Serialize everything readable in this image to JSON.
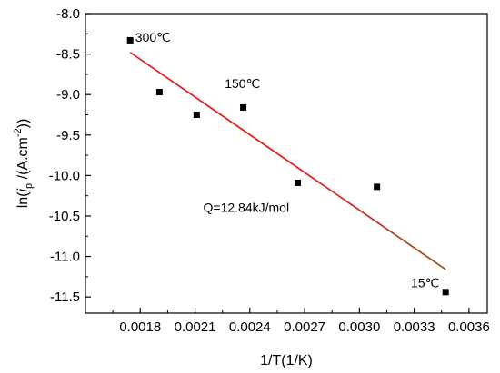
{
  "chart_data": {
    "type": "scatter",
    "title": "",
    "xlabel": "1/T(1/K)",
    "ylabel": {
      "prefix": "ln(",
      "italic": "i",
      "sub": "p",
      "unit_open": "  /(A.cm",
      "sup": "-2",
      "close": "))"
    },
    "xlim": [
      0.0015,
      0.0037
    ],
    "ylim": [
      -11.7,
      -8.0
    ],
    "x_ticks": [
      0.0018,
      0.0021,
      0.0024,
      0.0027,
      0.003,
      0.0033,
      0.0036
    ],
    "x_tick_labels": [
      "0.0018",
      "0.0021",
      "0.0024",
      "0.0027",
      "0.0030",
      "0.0033",
      "0.0036"
    ],
    "y_ticks": [
      -8.0,
      -8.5,
      -9.0,
      -9.5,
      -10.0,
      -10.5,
      -11.0,
      -11.5
    ],
    "y_tick_labels": [
      "-8.0",
      "-8.5",
      "-9.0",
      "-9.5",
      "-10.0",
      "-10.5",
      "-11.0",
      "-11.5"
    ],
    "grid": false,
    "series": [
      {
        "points": [
          {
            "x": 0.001745,
            "y": -8.33
          },
          {
            "x": 0.001905,
            "y": -8.97
          },
          {
            "x": 0.002109,
            "y": -9.25
          },
          {
            "x": 0.002364,
            "y": -9.16
          },
          {
            "x": 0.002662,
            "y": -10.09
          },
          {
            "x": 0.003096,
            "y": -10.14
          },
          {
            "x": 0.003472,
            "y": -11.44
          }
        ],
        "marker": "square",
        "color": "#000000"
      }
    ],
    "fit_line": {
      "x": [
        0.001745,
        0.003472
      ],
      "y": [
        -8.48,
        -11.16
      ],
      "color_start": "#e8201c",
      "color_end": "#9a5a22"
    },
    "annotations": [
      {
        "text": "300℃",
        "x": 0.00187,
        "y": -8.35
      },
      {
        "text": "150℃",
        "x": 0.00236,
        "y": -8.92
      },
      {
        "text": "Q=12.84kJ/mol",
        "x": 0.00238,
        "y": -10.45
      },
      {
        "text": "15℃",
        "x": 0.00336,
        "y": -11.38
      }
    ]
  }
}
